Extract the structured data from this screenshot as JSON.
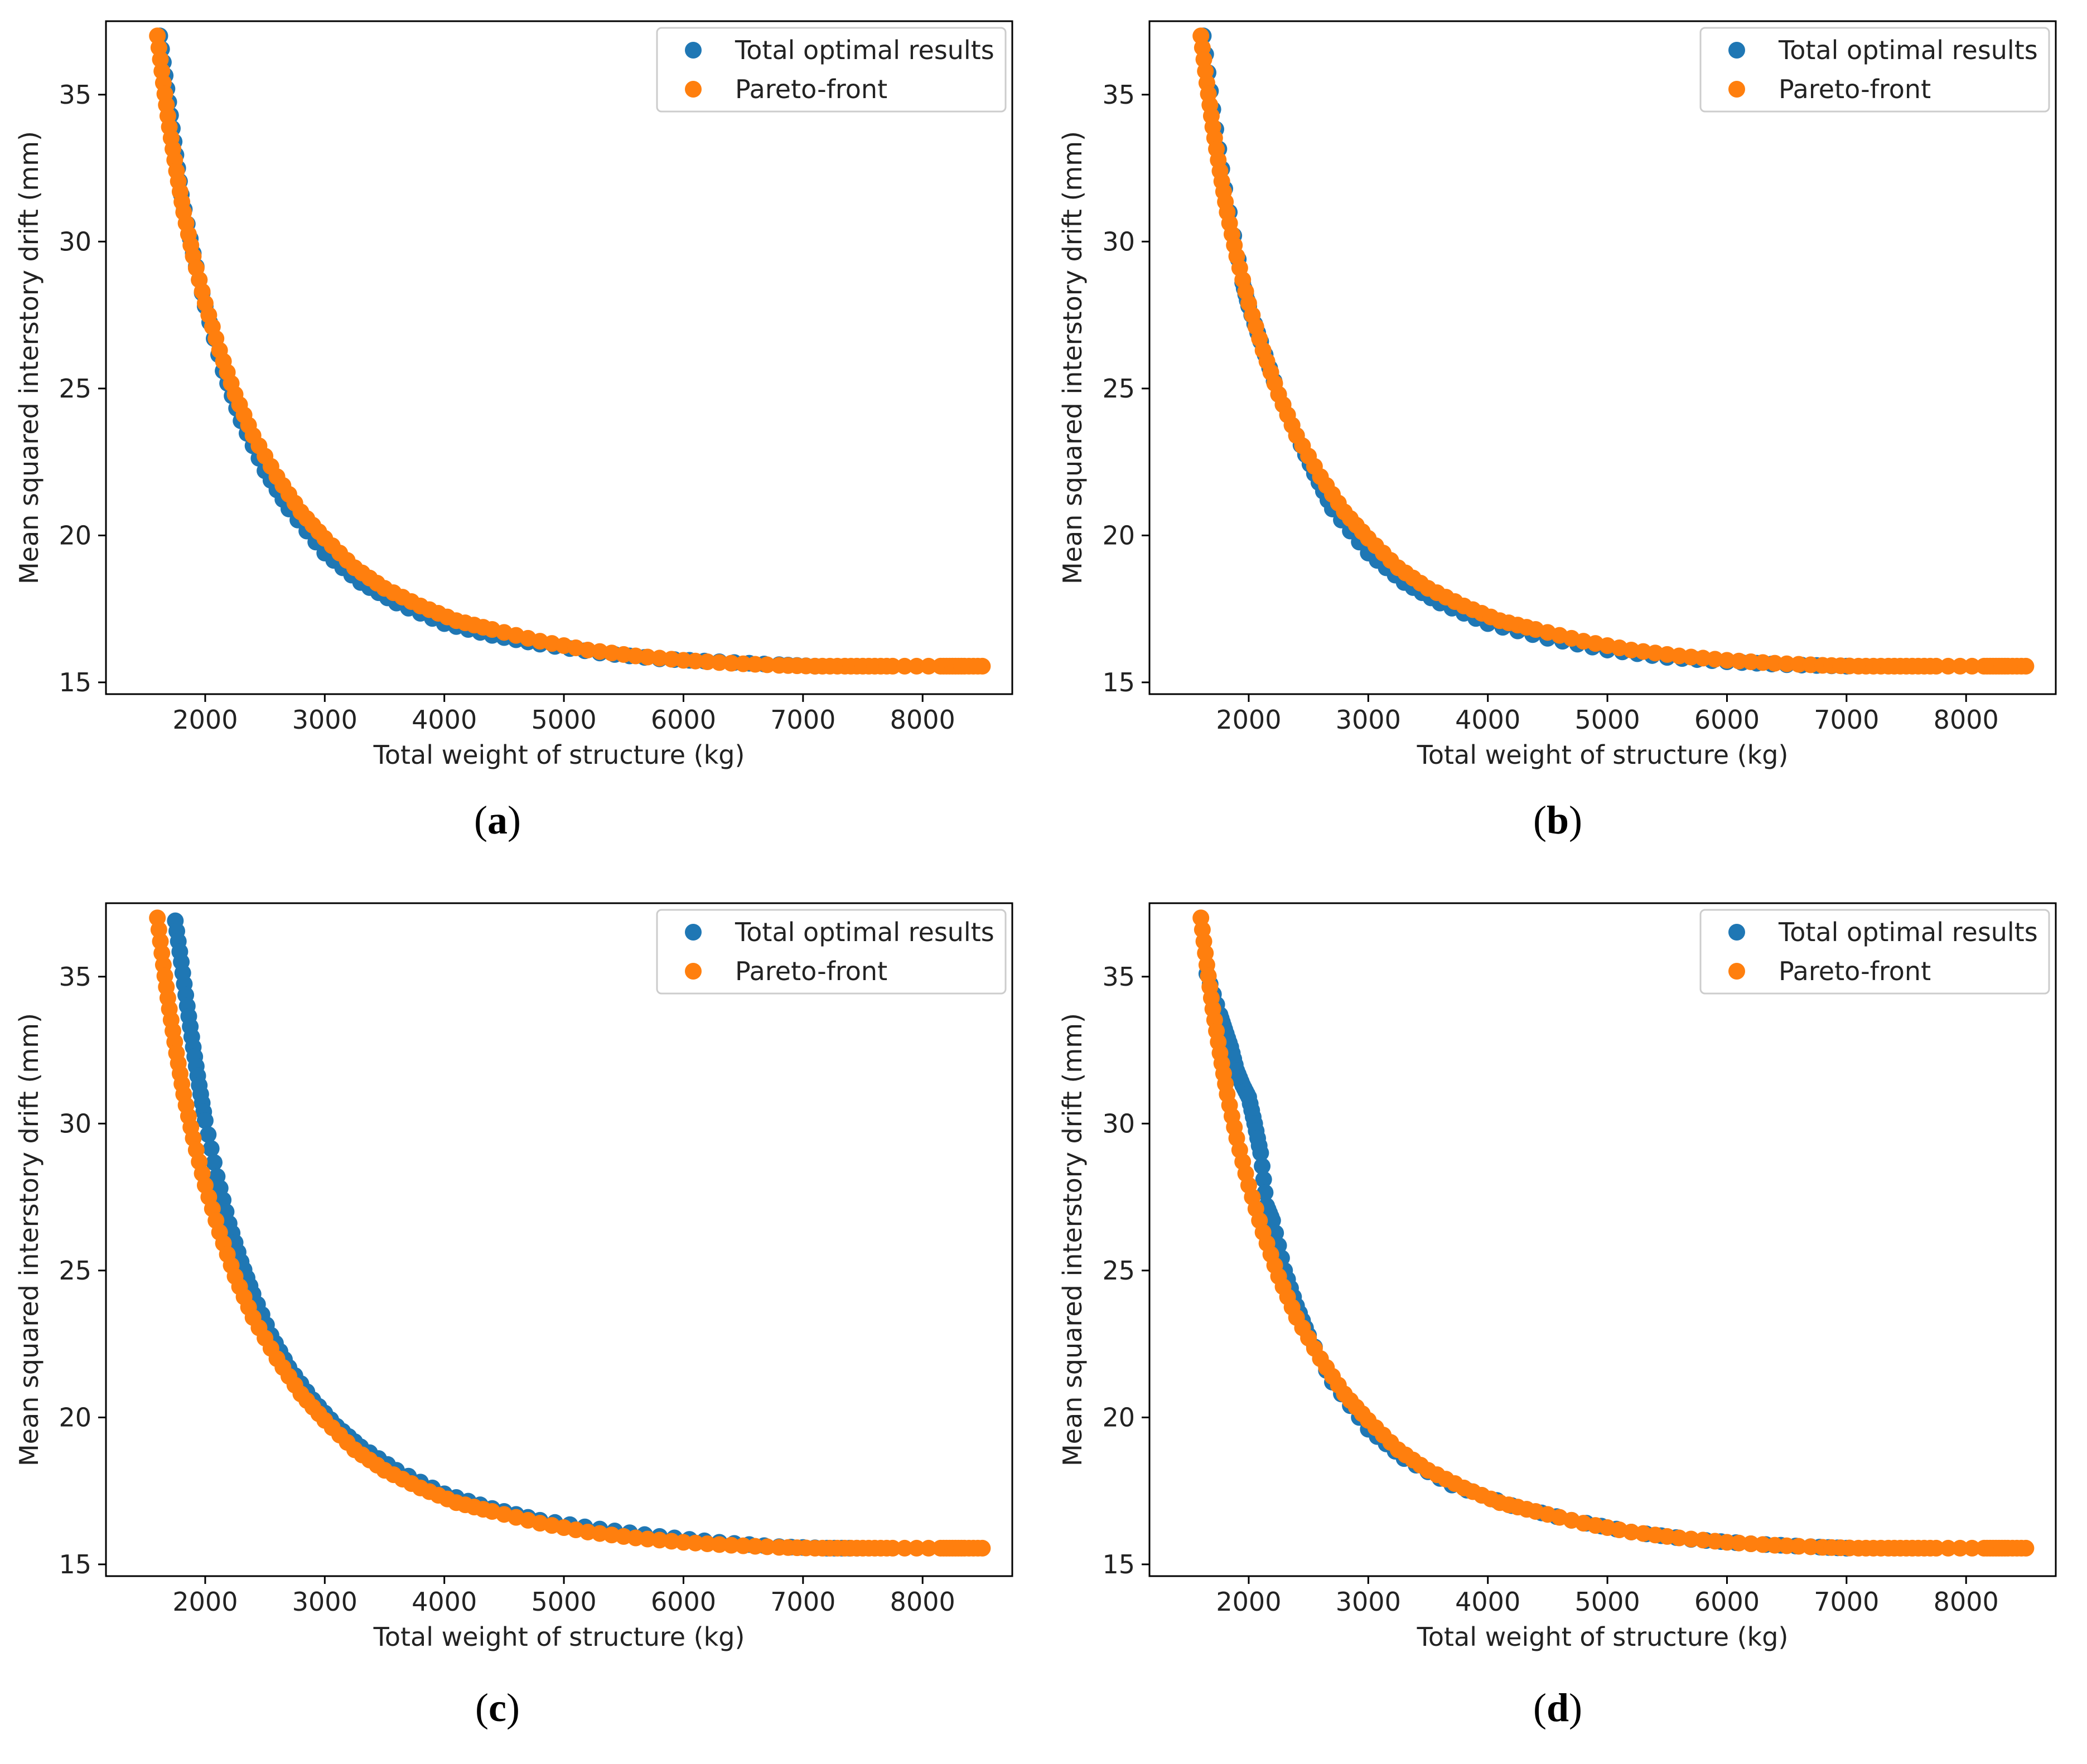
{
  "colors": {
    "total": "#1f77b4",
    "pareto": "#ff7f0e"
  },
  "chart_data": [
    {
      "type": "scatter",
      "panel": "a",
      "caption_open": "(",
      "caption_letter": "a",
      "caption_close": ")",
      "xlabel": "Total weight of structure (kg)",
      "ylabel": "Mean squared interstory drift (mm)",
      "xlim": [
        1170,
        8750
      ],
      "ylim": [
        14.6,
        37.5
      ],
      "xticks": [
        2000,
        3000,
        4000,
        5000,
        6000,
        7000,
        8000
      ],
      "yticks": [
        15,
        20,
        25,
        30,
        35
      ],
      "legend": {
        "position": "top-right",
        "entries": [
          "Total optimal results",
          "Pareto-front"
        ]
      },
      "series": [
        {
          "name": "Total optimal results",
          "x": [
            1620,
            1680,
            1740,
            1800,
            1900,
            2000,
            2150,
            2300,
            2500,
            2700,
            3000,
            3300,
            3600,
            4000,
            4400,
            4800,
            5300,
            5800,
            6300,
            6800,
            7100
          ],
          "y": [
            37.0,
            35.2,
            33.4,
            31.6,
            29.6,
            27.8,
            25.6,
            23.9,
            22.2,
            20.9,
            19.4,
            18.4,
            17.7,
            17.0,
            16.6,
            16.3,
            16.0,
            15.8,
            15.7,
            15.6,
            15.55
          ]
        },
        {
          "name": "Pareto-front",
          "x": [
            1600,
            1650,
            1700,
            1760,
            1820,
            1900,
            2000,
            2120,
            2250,
            2400,
            2600,
            2800,
            3000,
            3250,
            3500,
            3800,
            4100,
            4400,
            4800,
            5200,
            5600,
            6000,
            6400,
            6800,
            7100,
            7350,
            7550,
            7750,
            8150,
            8250,
            8350,
            8500
          ],
          "y": [
            37.0,
            35.4,
            33.9,
            32.4,
            31.0,
            29.5,
            27.9,
            26.3,
            24.8,
            23.4,
            22.0,
            20.8,
            19.9,
            18.9,
            18.2,
            17.6,
            17.1,
            16.8,
            16.4,
            16.1,
            15.9,
            15.75,
            15.65,
            15.58,
            15.55,
            15.55,
            15.55,
            15.55,
            15.55,
            15.55,
            15.55,
            15.55
          ]
        }
      ]
    },
    {
      "type": "scatter",
      "panel": "b",
      "caption_open": "(",
      "caption_letter": "b",
      "caption_close": ")",
      "xlabel": "Total weight of structure (kg)",
      "ylabel": "Mean squared interstory drift (mm)",
      "xlim": [
        1170,
        8750
      ],
      "ylim": [
        14.6,
        37.5
      ],
      "xticks": [
        2000,
        3000,
        4000,
        5000,
        6000,
        7000,
        8000
      ],
      "yticks": [
        15,
        20,
        25,
        30,
        35
      ],
      "legend": {
        "position": "top-right",
        "entries": [
          "Total optimal results",
          "Pareto-front"
        ]
      },
      "series": [
        {
          "name": "Total optimal results",
          "x": [
            1620,
            1700,
            1800,
            1950,
            2000,
            2100,
            2250,
            2400,
            2550,
            2700,
            3000,
            3300,
            3600,
            4000,
            4500,
            5000,
            5500,
            6000,
            6500,
            7000
          ],
          "y": [
            37.0,
            34.5,
            31.8,
            28.6,
            27.8,
            26.6,
            24.8,
            23.4,
            22.1,
            20.9,
            19.4,
            18.4,
            17.7,
            17.0,
            16.5,
            16.1,
            15.85,
            15.7,
            15.6,
            15.55
          ]
        },
        {
          "name": "Pareto-front",
          "x": [
            1600,
            1650,
            1700,
            1760,
            1820,
            1900,
            2000,
            2120,
            2250,
            2400,
            2600,
            2800,
            3000,
            3250,
            3500,
            3800,
            4100,
            4400,
            4800,
            5200,
            5600,
            6000,
            6400,
            6800,
            7100,
            7350,
            7550,
            7750,
            8150,
            8250,
            8350,
            8500
          ],
          "y": [
            37.0,
            35.4,
            33.9,
            32.4,
            31.0,
            29.5,
            27.9,
            26.3,
            24.8,
            23.4,
            22.0,
            20.8,
            19.9,
            18.9,
            18.2,
            17.6,
            17.1,
            16.8,
            16.4,
            16.1,
            15.9,
            15.75,
            15.65,
            15.58,
            15.55,
            15.55,
            15.55,
            15.55,
            15.55,
            15.55,
            15.55,
            15.55
          ]
        }
      ]
    },
    {
      "type": "scatter",
      "panel": "c",
      "caption_open": "(",
      "caption_letter": "c",
      "caption_close": ")",
      "xlabel": "Total weight of structure (kg)",
      "ylabel": "Mean squared interstory drift (mm)",
      "xlim": [
        1170,
        8750
      ],
      "ylim": [
        14.6,
        37.5
      ],
      "xticks": [
        2000,
        3000,
        4000,
        5000,
        6000,
        7000,
        8000
      ],
      "yticks": [
        15,
        20,
        25,
        30,
        35
      ],
      "legend": {
        "position": "top-right",
        "entries": [
          "Total optimal results",
          "Pareto-front"
        ]
      },
      "series": [
        {
          "name": "Total optimal results",
          "x": [
            1750,
            1800,
            1850,
            1900,
            1950,
            2000,
            2100,
            2200,
            2300,
            2400,
            2550,
            2700,
            2900,
            3100,
            3300,
            3600,
            4000,
            4400,
            4800,
            5300,
            5800,
            6300,
            6800,
            7200,
            7450
          ],
          "y": [
            36.9,
            35.5,
            34.0,
            32.6,
            31.3,
            30.1,
            28.2,
            26.6,
            25.3,
            24.2,
            22.8,
            21.7,
            20.6,
            19.7,
            19.0,
            18.2,
            17.4,
            16.9,
            16.5,
            16.2,
            15.95,
            15.75,
            15.6,
            15.55,
            15.55
          ]
        },
        {
          "name": "Pareto-front",
          "x": [
            1600,
            1650,
            1700,
            1760,
            1820,
            1900,
            2000,
            2120,
            2250,
            2400,
            2600,
            2800,
            3000,
            3250,
            3500,
            3800,
            4100,
            4400,
            4800,
            5200,
            5600,
            6000,
            6400,
            6800,
            7100,
            7350,
            7550,
            7750,
            8150,
            8250,
            8350,
            8500
          ],
          "y": [
            37.0,
            35.4,
            33.9,
            32.4,
            31.0,
            29.5,
            27.9,
            26.3,
            24.8,
            23.4,
            22.0,
            20.8,
            19.9,
            18.9,
            18.2,
            17.6,
            17.1,
            16.8,
            16.4,
            16.1,
            15.9,
            15.75,
            15.65,
            15.58,
            15.55,
            15.55,
            15.55,
            15.55,
            15.55,
            15.55,
            15.55,
            15.55
          ]
        }
      ]
    },
    {
      "type": "scatter",
      "panel": "d",
      "caption_open": "(",
      "caption_letter": "d",
      "caption_close": ")",
      "xlabel": "Total weight of structure (kg)",
      "ylabel": "Mean squared interstory drift (mm)",
      "xlim": [
        1170,
        8750
      ],
      "ylim": [
        14.6,
        37.5
      ],
      "xticks": [
        2000,
        3000,
        4000,
        5000,
        6000,
        7000,
        8000
      ],
      "yticks": [
        15,
        20,
        25,
        30,
        35
      ],
      "legend": {
        "position": "top-right",
        "entries": [
          "Total optimal results",
          "Pareto-front"
        ]
      },
      "series": [
        {
          "name": "Total optimal results",
          "x": [
            1650,
            1760,
            1800,
            1850,
            1900,
            1950,
            2000,
            2050,
            2100,
            2150,
            2200,
            2300,
            2400,
            2500,
            2700,
            3000,
            3300,
            3700,
            4200,
            4700,
            5200,
            5700,
            6200,
            6700,
            7000
          ],
          "y": [
            35.1,
            33.7,
            33.2,
            32.6,
            31.8,
            31.3,
            30.9,
            30.0,
            29.0,
            27.2,
            26.7,
            25.0,
            23.8,
            22.8,
            21.2,
            19.6,
            18.6,
            17.7,
            17.0,
            16.5,
            16.1,
            15.85,
            15.7,
            15.6,
            15.55
          ]
        },
        {
          "name": "Pareto-front",
          "x": [
            1600,
            1650,
            1700,
            1760,
            1820,
            1900,
            2000,
            2120,
            2250,
            2400,
            2600,
            2800,
            3000,
            3250,
            3500,
            3800,
            4100,
            4400,
            4800,
            5200,
            5600,
            6000,
            6400,
            6800,
            7100,
            7350,
            7550,
            7750,
            8150,
            8250,
            8350,
            8500
          ],
          "y": [
            37.0,
            35.4,
            33.9,
            32.4,
            31.0,
            29.5,
            27.9,
            26.3,
            24.8,
            23.4,
            22.0,
            20.8,
            19.9,
            18.9,
            18.2,
            17.6,
            17.1,
            16.8,
            16.4,
            16.1,
            15.9,
            15.75,
            15.65,
            15.58,
            15.55,
            15.55,
            15.55,
            15.55,
            15.55,
            15.55,
            15.55,
            15.55
          ]
        }
      ]
    }
  ]
}
